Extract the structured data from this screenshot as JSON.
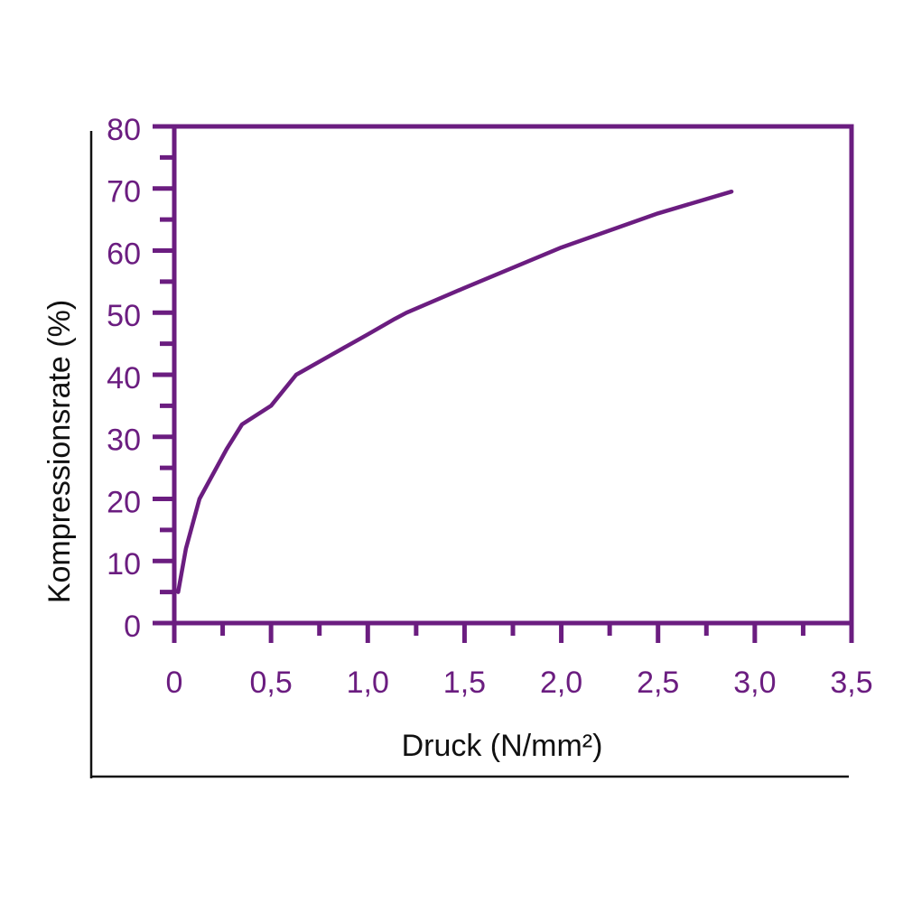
{
  "chart_data": {
    "type": "line",
    "x_label": "Druck (N/mm²)",
    "y_label": "Kompressionsrate (%)",
    "color": "#6b1d80",
    "x": [
      0.02,
      0.06,
      0.13,
      0.27,
      0.35,
      0.5,
      0.63,
      0.8,
      1.0,
      1.14,
      1.2,
      1.5,
      2.0,
      2.5,
      2.88
    ],
    "values": [
      5,
      12,
      20,
      28,
      32,
      35,
      40,
      43,
      46.5,
      49,
      50,
      54,
      60.5,
      66,
      69.5
    ],
    "xlim": [
      0,
      3.5
    ],
    "ylim": [
      0,
      80
    ],
    "xticks": [
      0,
      {
        "value": 0.5,
        "label": "0,5"
      },
      {
        "value": 1.0,
        "label": "1,0"
      },
      {
        "value": 1.5,
        "label": "1,5"
      },
      {
        "value": 2.0,
        "label": "2,0"
      },
      {
        "value": 2.5,
        "label": "2,5"
      },
      {
        "value": 3.0,
        "label": "3,0"
      },
      {
        "value": 3.5,
        "label": "3,5"
      }
    ],
    "yticks": [
      0,
      10,
      20,
      30,
      40,
      50,
      60,
      70,
      80
    ],
    "xminorticks": [
      0.25,
      0.75,
      1.25,
      1.75,
      2.25,
      2.75,
      3.25
    ],
    "yminorticks": [
      5,
      15,
      25,
      35,
      45,
      55,
      65,
      75
    ],
    "grid": false
  }
}
